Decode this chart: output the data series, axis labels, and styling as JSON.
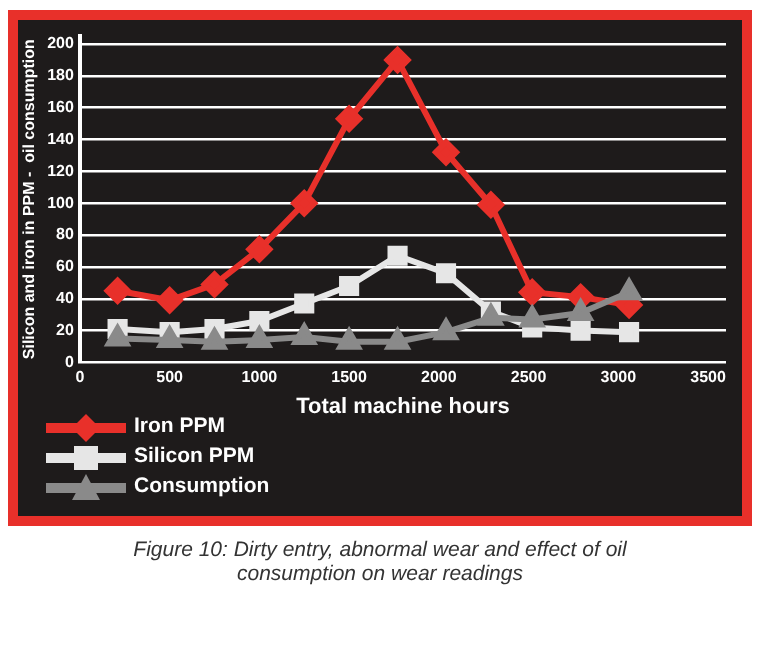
{
  "chart_data": {
    "type": "line",
    "xlabel": "Total machine hours",
    "ylabel": "Silicon and iron in PPM -  oil consumption",
    "x": [
      210,
      500,
      750,
      1000,
      1250,
      1500,
      1770,
      2040,
      2290,
      2520,
      2790,
      3060
    ],
    "series": [
      {
        "name": "Iron PPM",
        "color": "#e8302a",
        "marker": "diamond",
        "values": [
          45,
          39,
          49,
          71,
          100,
          153,
          190,
          132,
          99,
          44,
          41,
          36
        ]
      },
      {
        "name": "Silicon PPM",
        "color": "#e6e6e6",
        "marker": "square",
        "values": [
          21,
          19,
          21,
          26,
          37,
          48,
          67,
          56,
          32,
          22,
          20,
          19
        ]
      },
      {
        "name": "Consumption",
        "color": "#8a8a8a",
        "marker": "triangle",
        "values": [
          15,
          14,
          13,
          14,
          16,
          13,
          13,
          19,
          28,
          27,
          31,
          44
        ]
      }
    ],
    "xlim": [
      0,
      3600
    ],
    "xticks": [
      0,
      500,
      1000,
      1500,
      2000,
      2500,
      3000,
      3500
    ],
    "ylim": [
      0,
      205
    ],
    "yticks": [
      0,
      20,
      40,
      60,
      80,
      100,
      120,
      140,
      160,
      180,
      200
    ],
    "grid": "y",
    "legend": "bottom left",
    "annotations": [
      "Figure 10: Dirty entry, abnormal wear and effect of oil consumption on wear readings"
    ]
  }
}
